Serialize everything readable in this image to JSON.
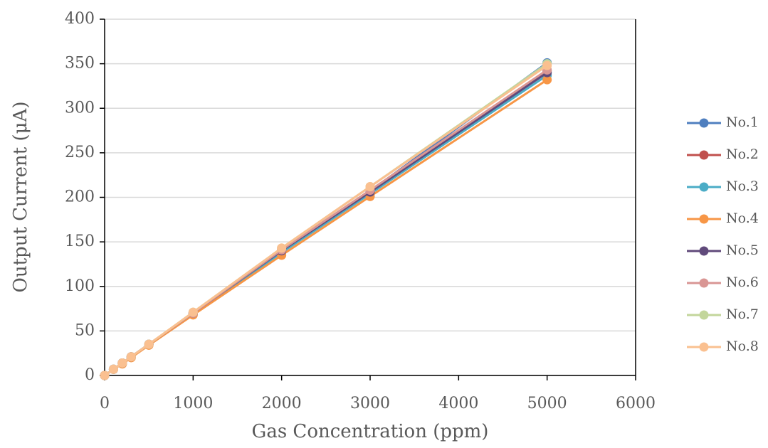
{
  "chart_data": {
    "type": "line",
    "x_label": "Gas Concentration (ppm)",
    "y_label": "Output Current (μA)",
    "x": [
      0,
      100,
      200,
      300,
      500,
      1000,
      2000,
      3000,
      5000
    ],
    "series": [
      {
        "name": "No.1",
        "color": "#4f7fbf",
        "values": [
          0,
          7,
          14,
          21,
          35,
          70,
          140,
          207,
          351
        ]
      },
      {
        "name": "No.2",
        "color": "#c0504d",
        "values": [
          0,
          7,
          14,
          21,
          35,
          70,
          139,
          206,
          342
        ]
      },
      {
        "name": "No.3",
        "color": "#4bacc6",
        "values": [
          0,
          7,
          14,
          21,
          35,
          69,
          138,
          204,
          337
        ]
      },
      {
        "name": "No.4",
        "color": "#f79646",
        "values": [
          0,
          7,
          13,
          20,
          34,
          68,
          135,
          201,
          332
        ]
      },
      {
        "name": "No.5",
        "color": "#604a7b",
        "values": [
          0,
          7,
          14,
          21,
          35,
          70,
          140,
          206,
          340
        ]
      },
      {
        "name": "No.6",
        "color": "#d99694",
        "values": [
          0,
          7,
          14,
          21,
          35,
          70,
          141,
          208,
          343
        ]
      },
      {
        "name": "No.7",
        "color": "#c3d69b",
        "values": [
          0,
          7,
          14,
          21,
          35,
          71,
          143,
          212,
          350
        ]
      },
      {
        "name": "No.8",
        "color": "#fac090",
        "values": [
          0,
          7,
          14,
          21,
          35,
          71,
          143,
          212,
          348
        ]
      }
    ],
    "xlim": [
      0,
      6000
    ],
    "xticks": [
      0,
      1000,
      2000,
      3000,
      4000,
      5000,
      6000
    ],
    "ylim": [
      0,
      400
    ],
    "yticks": [
      0,
      50,
      100,
      150,
      200,
      250,
      300,
      350,
      400
    ],
    "grid": true,
    "legend": "right"
  }
}
